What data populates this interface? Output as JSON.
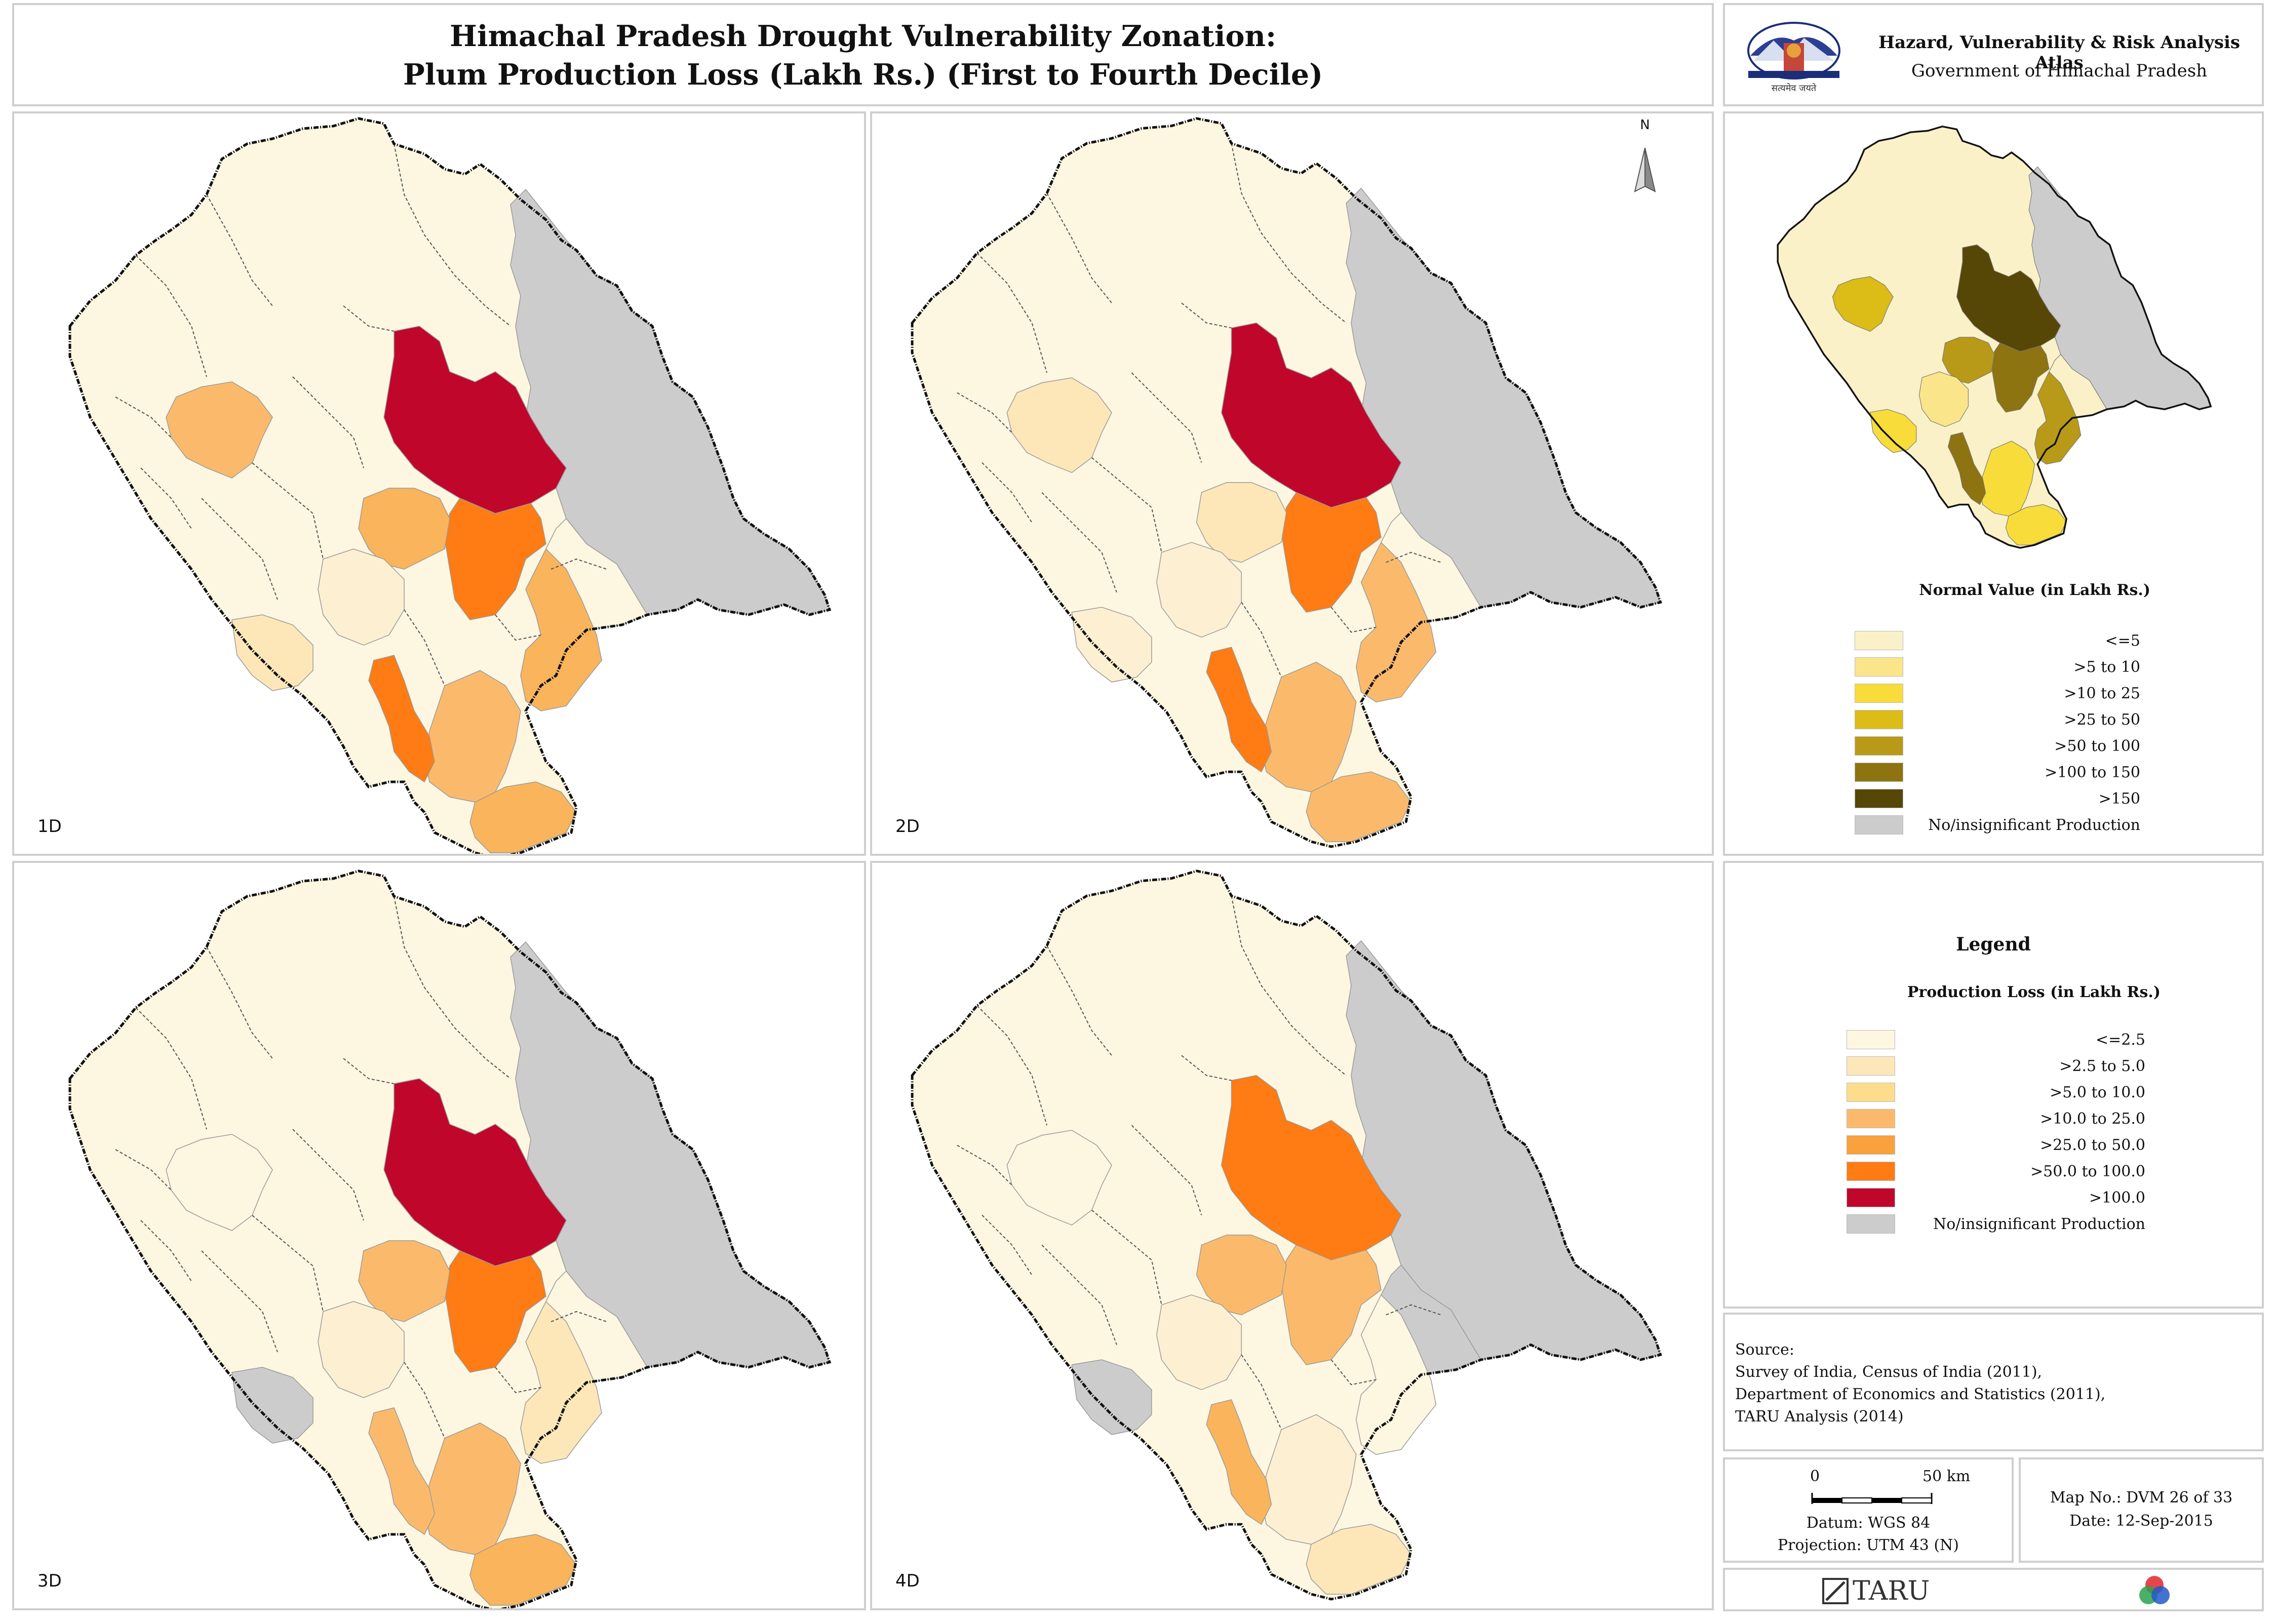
{
  "title": {
    "line1": "Himachal Pradesh Drought Vulnerability Zonation:",
    "line2": "Plum Production Loss (Lakh Rs.) (First to Fourth Decile)"
  },
  "atlas": {
    "name": "Hazard, Vulnerability & Risk Analysis Atlas",
    "government": "Government of Himachal Pradesh",
    "emblem_text": "सत्यमेव जयते"
  },
  "north_arrow": "N",
  "maps": [
    {
      "label": "1D",
      "fills": {
        "chamba_ne": "#fdf6e1",
        "lahaul_spiti": "#cccccc",
        "kullu": "#c0062b",
        "mandi_east": "#ff7b13",
        "mandi_west": "#f9b45c",
        "kangra_mid": "#fbba6b",
        "shimla": "#f9b45c",
        "solan": "#fbba6b",
        "sirmaur": "#f9b45c",
        "bilaspur_strip": "#ff7b13",
        "hamirpur": "#fdf0d2",
        "una": "#fde7b8",
        "kinnaur": "#fdf6e1"
      }
    },
    {
      "label": "2D",
      "fills": {
        "chamba_ne": "#fdf6e1",
        "lahaul_spiti": "#cccccc",
        "kullu": "#c0062b",
        "mandi_east": "#ff7b13",
        "mandi_west": "#fde7b8",
        "kangra_mid": "#fde7b8",
        "shimla": "#fbba6b",
        "solan": "#fbba6b",
        "sirmaur": "#fbba6b",
        "bilaspur_strip": "#ff7b13",
        "hamirpur": "#fdf0d2",
        "una": "#fdf0d2",
        "kinnaur": "#fdf6e1"
      }
    },
    {
      "label": "3D",
      "fills": {
        "chamba_ne": "#fdf6e1",
        "lahaul_spiti": "#cccccc",
        "kullu": "#c0062b",
        "mandi_east": "#ff7b13",
        "mandi_west": "#fbba6b",
        "kangra_mid": "#fdf6e1",
        "shimla": "#fde7b8",
        "solan": "#fbba6b",
        "sirmaur": "#f9b45c",
        "bilaspur_strip": "#fbba6b",
        "hamirpur": "#fdf0d2",
        "una": "#cccccc",
        "kinnaur": "#fdf6e1"
      }
    },
    {
      "label": "4D",
      "fills": {
        "chamba_ne": "#fdf6e1",
        "lahaul_spiti": "#cccccc",
        "kullu": "#ff7b13",
        "mandi_east": "#fbba6b",
        "mandi_west": "#fbba6b",
        "kangra_mid": "#fdf6e1",
        "shimla": "#fdf6e1",
        "solan": "#fdf0d2",
        "sirmaur": "#fde7b8",
        "bilaspur_strip": "#f9b45c",
        "hamirpur": "#fdf0d2",
        "una": "#cccccc",
        "kinnaur": "#cccccc"
      }
    }
  ],
  "normal_map": {
    "title": "Normal Value (in Lakh Rs.)",
    "classes": [
      {
        "label": "<=5",
        "color": "#fbf1c8"
      },
      {
        "label": ">5 to 10",
        "color": "#fbe58a"
      },
      {
        "label": ">10 to 25",
        "color": "#f8dc3a"
      },
      {
        "label": ">25 to 50",
        "color": "#dcbc16"
      },
      {
        "label": ">50 to 100",
        "color": "#b89a18"
      },
      {
        "label": ">100 to 150",
        "color": "#8e7311"
      },
      {
        "label": ">150",
        "color": "#564707"
      },
      {
        "label": "No/insignificant Production",
        "color": "#cccccc"
      }
    ]
  },
  "legend": {
    "heading": "Legend",
    "title": "Production Loss (in Lakh Rs.)",
    "classes": [
      {
        "label": "<=2.5",
        "color": "#fdf6e1"
      },
      {
        "label": ">2.5 to 5.0",
        "color": "#fde7b8"
      },
      {
        "label": ">5.0 to 10.0",
        "color": "#fddc8c"
      },
      {
        "label": ">10.0 to 25.0",
        "color": "#fbba6b"
      },
      {
        "label": ">25.0 to 50.0",
        "color": "#f9a13c"
      },
      {
        "label": ">50.0 to 100.0",
        "color": "#ff7b13"
      },
      {
        "label": ">100.0",
        "color": "#c0062b"
      },
      {
        "label": "No/insignificant Production",
        "color": "#cccccc"
      }
    ]
  },
  "source": {
    "heading": "Source:",
    "lines": [
      "Survey of India, Census of India (2011),",
      "Department of Economics and Statistics (2011),",
      "TARU Analysis (2014)"
    ]
  },
  "scale": {
    "zero": "0",
    "distance": "50 km",
    "datum": "Datum: WGS 84",
    "projection": "Projection: UTM 43 (N)"
  },
  "map_info": {
    "map_no": "Map No.: DVM 26 of 33",
    "date": "Date: 12-Sep-2015"
  },
  "footer": {
    "brand": "TARU"
  }
}
